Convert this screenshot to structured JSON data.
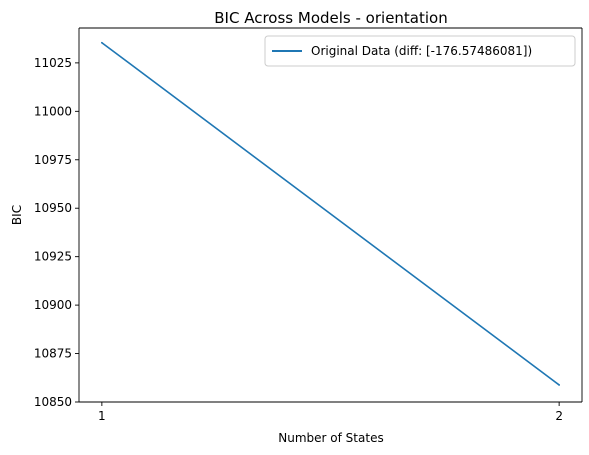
{
  "chart_data": {
    "type": "line",
    "title": "BIC Across Models - orientation",
    "xlabel": "Number of States",
    "ylabel": "BIC",
    "x": [
      1,
      2
    ],
    "xticks": [
      1,
      2
    ],
    "xtick_labels": [
      "1",
      "2"
    ],
    "yticks": [
      10850,
      10875,
      10900,
      10925,
      10950,
      10975,
      11000,
      11025
    ],
    "ytick_labels": [
      "10850",
      "10875",
      "10900",
      "10925",
      "10950",
      "10975",
      "11000",
      "11025"
    ],
    "xlim": [
      0.95,
      2.05
    ],
    "ylim": [
      10850,
      11043
    ],
    "grid": false,
    "legend_position": "top-right",
    "series": [
      {
        "name": "Original Data (diff: [-176.57486081])",
        "values": [
          11035.4,
          10858.8
        ],
        "color": "#1f77b4"
      }
    ]
  }
}
